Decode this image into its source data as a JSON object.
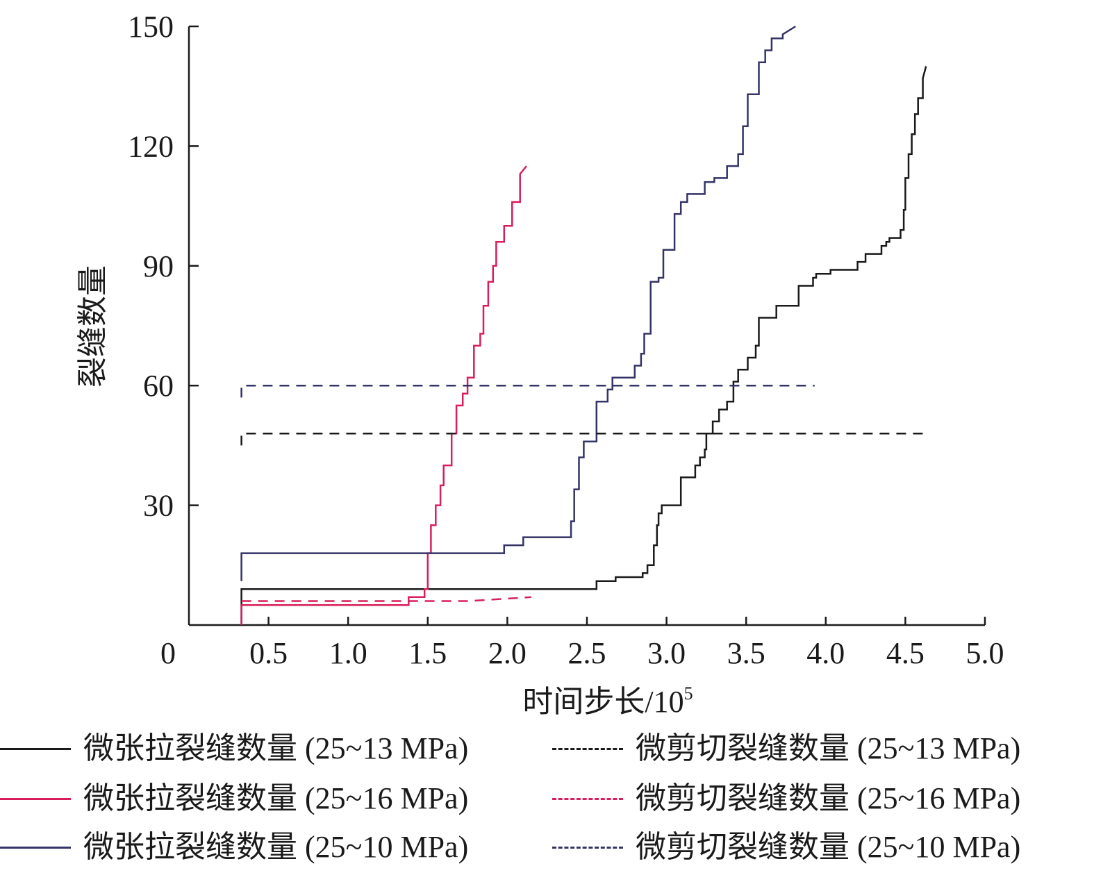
{
  "chart_data": {
    "type": "line",
    "xlabel": "时间步长/10",
    "xlabel_sup": "5",
    "ylabel": "裂缝数量",
    "xlim": [
      0,
      5.0
    ],
    "ylim": [
      0,
      150
    ],
    "x_ticks": [
      "0",
      "0.5",
      "1.0",
      "1.5",
      "2.0",
      "2.5",
      "3.0",
      "3.5",
      "4.0",
      "4.5",
      "5.0"
    ],
    "y_ticks": [
      "30",
      "60",
      "90",
      "120",
      "150"
    ],
    "grid": false,
    "legend_position": "bottom",
    "series": [
      {
        "name": "微张拉裂缝数量 (25~13 MPa)",
        "style": "solid",
        "color": "#1a1a1a",
        "x": [
          0.33,
          0.33,
          0.33,
          2.56,
          2.56,
          2.68,
          2.68,
          2.85,
          2.85,
          2.88,
          2.88,
          2.92,
          2.92,
          2.94,
          2.94,
          2.95,
          2.95,
          2.97,
          2.97,
          3.09,
          3.09,
          3.18,
          3.18,
          3.21,
          3.21,
          3.24,
          3.24,
          3.25,
          3.25,
          3.29,
          3.29,
          3.33,
          3.33,
          3.38,
          3.38,
          3.42,
          3.42,
          3.45,
          3.45,
          3.51,
          3.51,
          3.56,
          3.56,
          3.58,
          3.58,
          3.69,
          3.69,
          3.83,
          3.83,
          3.92,
          3.92,
          3.94,
          3.94,
          3.97,
          3.97,
          4.03,
          4.03,
          4.2,
          4.2,
          4.25,
          4.25,
          4.35,
          4.35,
          4.38,
          4.38,
          4.4,
          4.4,
          4.47,
          4.47,
          4.49,
          4.49,
          4.5,
          4.5,
          4.52,
          4.52,
          4.54,
          4.54,
          4.56,
          4.56,
          4.58,
          4.58,
          4.61,
          4.61,
          4.63
        ],
        "y": [
          0,
          9,
          9,
          9,
          11,
          11,
          12,
          12,
          13,
          13,
          15,
          15,
          20,
          20,
          25,
          25,
          28,
          28,
          30,
          30,
          37,
          37,
          40,
          40,
          42,
          42,
          44,
          44,
          48,
          48,
          51,
          51,
          54,
          54,
          56,
          56,
          61,
          61,
          64,
          64,
          67,
          67,
          70,
          70,
          77,
          77,
          80,
          80,
          85,
          85,
          87,
          87,
          88,
          88,
          88,
          88,
          89,
          89,
          91,
          91,
          93,
          93,
          95,
          95,
          96,
          96,
          97,
          97,
          99,
          99,
          104,
          104,
          112,
          112,
          118,
          118,
          123,
          123,
          128,
          128,
          132,
          132,
          137,
          140
        ]
      },
      {
        "name": "微张拉裂缝数量 (25~16 MPa)",
        "style": "solid",
        "color": "#d81e5b",
        "x": [
          0.33,
          0.33,
          0.33,
          1.38,
          1.38,
          1.48,
          1.48,
          1.5,
          1.5,
          1.52,
          1.52,
          1.55,
          1.55,
          1.58,
          1.58,
          1.6,
          1.6,
          1.65,
          1.65,
          1.68,
          1.68,
          1.72,
          1.72,
          1.75,
          1.75,
          1.79,
          1.79,
          1.83,
          1.83,
          1.85,
          1.85,
          1.88,
          1.88,
          1.91,
          1.91,
          1.93,
          1.93,
          1.98,
          1.98,
          2.03,
          2.03,
          2.08,
          2.08,
          2.12
        ],
        "y": [
          0,
          5,
          5,
          5,
          7,
          7,
          9,
          9,
          18,
          18,
          25,
          25,
          30,
          30,
          35,
          35,
          40,
          40,
          48,
          48,
          55,
          55,
          58,
          58,
          62,
          62,
          70,
          70,
          73,
          73,
          80,
          80,
          86,
          86,
          90,
          90,
          96,
          96,
          100,
          100,
          106,
          106,
          113,
          115
        ]
      },
      {
        "name": "微张拉裂缝数量 (25~10 MPa)",
        "style": "solid",
        "color": "#333366",
        "x": [
          0.33,
          0.33,
          0.33,
          1.98,
          1.98,
          2.1,
          2.1,
          2.4,
          2.4,
          2.42,
          2.42,
          2.45,
          2.45,
          2.48,
          2.48,
          2.56,
          2.56,
          2.63,
          2.63,
          2.66,
          2.66,
          2.69,
          2.69,
          2.8,
          2.8,
          2.84,
          2.84,
          2.86,
          2.86,
          2.9,
          2.9,
          2.95,
          2.95,
          2.98,
          2.98,
          3.05,
          3.05,
          3.09,
          3.09,
          3.13,
          3.13,
          3.24,
          3.24,
          3.3,
          3.3,
          3.38,
          3.38,
          3.45,
          3.45,
          3.48,
          3.48,
          3.51,
          3.51,
          3.58,
          3.58,
          3.62,
          3.62,
          3.66,
          3.66,
          3.73,
          3.73,
          3.81
        ],
        "y": [
          11,
          18,
          18,
          18,
          20,
          20,
          22,
          22,
          26,
          26,
          34,
          34,
          42,
          42,
          46,
          46,
          56,
          56,
          59,
          59,
          62,
          62,
          62,
          62,
          65,
          65,
          68,
          68,
          73,
          73,
          86,
          86,
          87,
          87,
          94,
          94,
          103,
          103,
          106,
          106,
          108,
          108,
          111,
          111,
          112,
          112,
          115,
          115,
          118,
          118,
          125,
          125,
          133,
          133,
          141,
          141,
          144,
          144,
          147,
          147,
          148,
          150
        ]
      },
      {
        "name": "微剪切裂缝数量 (25~13 MPa)",
        "style": "dashed",
        "color": "#1a1a1a",
        "x": [
          0.33,
          0.33,
          0.33,
          4.62
        ],
        "y": [
          45,
          48,
          48,
          48
        ]
      },
      {
        "name": "微剪切裂缝数量 (25~16 MPa)",
        "style": "dashed",
        "color": "#d81e5b",
        "x": [
          0.33,
          0.33,
          1.75,
          2.15
        ],
        "y": [
          6,
          6,
          6,
          7
        ]
      },
      {
        "name": "微剪切裂缝数量 (25~10 MPa)",
        "style": "dashed",
        "color": "#333366",
        "x": [
          0.33,
          0.33,
          0.33,
          3.93
        ],
        "y": [
          57,
          60,
          60,
          60
        ]
      }
    ]
  },
  "legend": {
    "items": [
      {
        "label": "微张拉裂缝数量 (25~13 MPa)",
        "color": "#1a1a1a",
        "style": "solid"
      },
      {
        "label": "微剪切裂缝数量 (25~13 MPa)",
        "color": "#1a1a1a",
        "style": "dashed"
      },
      {
        "label": "微张拉裂缝数量 (25~16 MPa)",
        "color": "#d81e5b",
        "style": "solid"
      },
      {
        "label": "微剪切裂缝数量 (25~16 MPa)",
        "color": "#d81e5b",
        "style": "dashed"
      },
      {
        "label": "微张拉裂缝数量 (25~10 MPa)",
        "color": "#333366",
        "style": "solid"
      },
      {
        "label": "微剪切裂缝数量 (25~10 MPa)",
        "color": "#333366",
        "style": "dashed"
      }
    ]
  }
}
